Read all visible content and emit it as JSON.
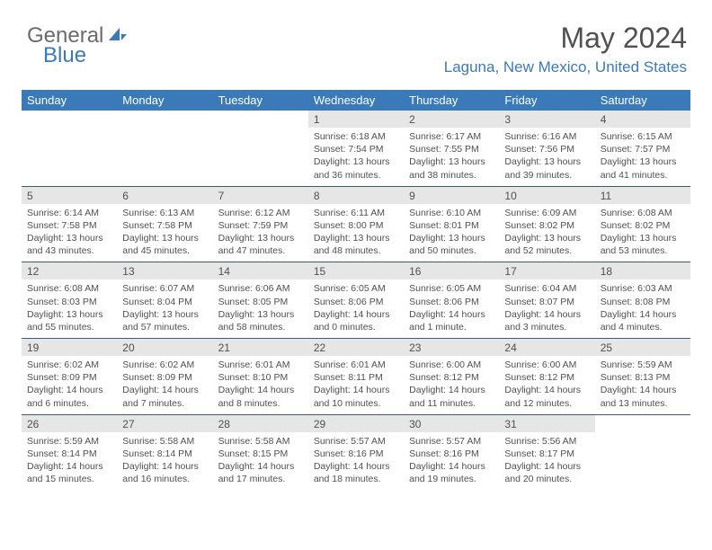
{
  "logo": {
    "part1": "General",
    "part2": "Blue"
  },
  "title": "May 2024",
  "location": "Laguna, New Mexico, United States",
  "colors": {
    "header_bg": "#3b7ab8",
    "header_text": "#ffffff",
    "daynum_bg": "#e6e6e6",
    "text": "#505050",
    "accent": "#3b7ab8",
    "rule": "#3b5a80"
  },
  "weekdays": [
    "Sunday",
    "Monday",
    "Tuesday",
    "Wednesday",
    "Thursday",
    "Friday",
    "Saturday"
  ],
  "weeks": [
    [
      {
        "n": "",
        "lines": []
      },
      {
        "n": "",
        "lines": []
      },
      {
        "n": "",
        "lines": []
      },
      {
        "n": "1",
        "lines": [
          "Sunrise: 6:18 AM",
          "Sunset: 7:54 PM",
          "Daylight: 13 hours and 36 minutes."
        ]
      },
      {
        "n": "2",
        "lines": [
          "Sunrise: 6:17 AM",
          "Sunset: 7:55 PM",
          "Daylight: 13 hours and 38 minutes."
        ]
      },
      {
        "n": "3",
        "lines": [
          "Sunrise: 6:16 AM",
          "Sunset: 7:56 PM",
          "Daylight: 13 hours and 39 minutes."
        ]
      },
      {
        "n": "4",
        "lines": [
          "Sunrise: 6:15 AM",
          "Sunset: 7:57 PM",
          "Daylight: 13 hours and 41 minutes."
        ]
      }
    ],
    [
      {
        "n": "5",
        "lines": [
          "Sunrise: 6:14 AM",
          "Sunset: 7:58 PM",
          "Daylight: 13 hours and 43 minutes."
        ]
      },
      {
        "n": "6",
        "lines": [
          "Sunrise: 6:13 AM",
          "Sunset: 7:58 PM",
          "Daylight: 13 hours and 45 minutes."
        ]
      },
      {
        "n": "7",
        "lines": [
          "Sunrise: 6:12 AM",
          "Sunset: 7:59 PM",
          "Daylight: 13 hours and 47 minutes."
        ]
      },
      {
        "n": "8",
        "lines": [
          "Sunrise: 6:11 AM",
          "Sunset: 8:00 PM",
          "Daylight: 13 hours and 48 minutes."
        ]
      },
      {
        "n": "9",
        "lines": [
          "Sunrise: 6:10 AM",
          "Sunset: 8:01 PM",
          "Daylight: 13 hours and 50 minutes."
        ]
      },
      {
        "n": "10",
        "lines": [
          "Sunrise: 6:09 AM",
          "Sunset: 8:02 PM",
          "Daylight: 13 hours and 52 minutes."
        ]
      },
      {
        "n": "11",
        "lines": [
          "Sunrise: 6:08 AM",
          "Sunset: 8:02 PM",
          "Daylight: 13 hours and 53 minutes."
        ]
      }
    ],
    [
      {
        "n": "12",
        "lines": [
          "Sunrise: 6:08 AM",
          "Sunset: 8:03 PM",
          "Daylight: 13 hours and 55 minutes."
        ]
      },
      {
        "n": "13",
        "lines": [
          "Sunrise: 6:07 AM",
          "Sunset: 8:04 PM",
          "Daylight: 13 hours and 57 minutes."
        ]
      },
      {
        "n": "14",
        "lines": [
          "Sunrise: 6:06 AM",
          "Sunset: 8:05 PM",
          "Daylight: 13 hours and 58 minutes."
        ]
      },
      {
        "n": "15",
        "lines": [
          "Sunrise: 6:05 AM",
          "Sunset: 8:06 PM",
          "Daylight: 14 hours and 0 minutes."
        ]
      },
      {
        "n": "16",
        "lines": [
          "Sunrise: 6:05 AM",
          "Sunset: 8:06 PM",
          "Daylight: 14 hours and 1 minute."
        ]
      },
      {
        "n": "17",
        "lines": [
          "Sunrise: 6:04 AM",
          "Sunset: 8:07 PM",
          "Daylight: 14 hours and 3 minutes."
        ]
      },
      {
        "n": "18",
        "lines": [
          "Sunrise: 6:03 AM",
          "Sunset: 8:08 PM",
          "Daylight: 14 hours and 4 minutes."
        ]
      }
    ],
    [
      {
        "n": "19",
        "lines": [
          "Sunrise: 6:02 AM",
          "Sunset: 8:09 PM",
          "Daylight: 14 hours and 6 minutes."
        ]
      },
      {
        "n": "20",
        "lines": [
          "Sunrise: 6:02 AM",
          "Sunset: 8:09 PM",
          "Daylight: 14 hours and 7 minutes."
        ]
      },
      {
        "n": "21",
        "lines": [
          "Sunrise: 6:01 AM",
          "Sunset: 8:10 PM",
          "Daylight: 14 hours and 8 minutes."
        ]
      },
      {
        "n": "22",
        "lines": [
          "Sunrise: 6:01 AM",
          "Sunset: 8:11 PM",
          "Daylight: 14 hours and 10 minutes."
        ]
      },
      {
        "n": "23",
        "lines": [
          "Sunrise: 6:00 AM",
          "Sunset: 8:12 PM",
          "Daylight: 14 hours and 11 minutes."
        ]
      },
      {
        "n": "24",
        "lines": [
          "Sunrise: 6:00 AM",
          "Sunset: 8:12 PM",
          "Daylight: 14 hours and 12 minutes."
        ]
      },
      {
        "n": "25",
        "lines": [
          "Sunrise: 5:59 AM",
          "Sunset: 8:13 PM",
          "Daylight: 14 hours and 13 minutes."
        ]
      }
    ],
    [
      {
        "n": "26",
        "lines": [
          "Sunrise: 5:59 AM",
          "Sunset: 8:14 PM",
          "Daylight: 14 hours and 15 minutes."
        ]
      },
      {
        "n": "27",
        "lines": [
          "Sunrise: 5:58 AM",
          "Sunset: 8:14 PM",
          "Daylight: 14 hours and 16 minutes."
        ]
      },
      {
        "n": "28",
        "lines": [
          "Sunrise: 5:58 AM",
          "Sunset: 8:15 PM",
          "Daylight: 14 hours and 17 minutes."
        ]
      },
      {
        "n": "29",
        "lines": [
          "Sunrise: 5:57 AM",
          "Sunset: 8:16 PM",
          "Daylight: 14 hours and 18 minutes."
        ]
      },
      {
        "n": "30",
        "lines": [
          "Sunrise: 5:57 AM",
          "Sunset: 8:16 PM",
          "Daylight: 14 hours and 19 minutes."
        ]
      },
      {
        "n": "31",
        "lines": [
          "Sunrise: 5:56 AM",
          "Sunset: 8:17 PM",
          "Daylight: 14 hours and 20 minutes."
        ]
      },
      {
        "n": "",
        "lines": []
      }
    ]
  ]
}
